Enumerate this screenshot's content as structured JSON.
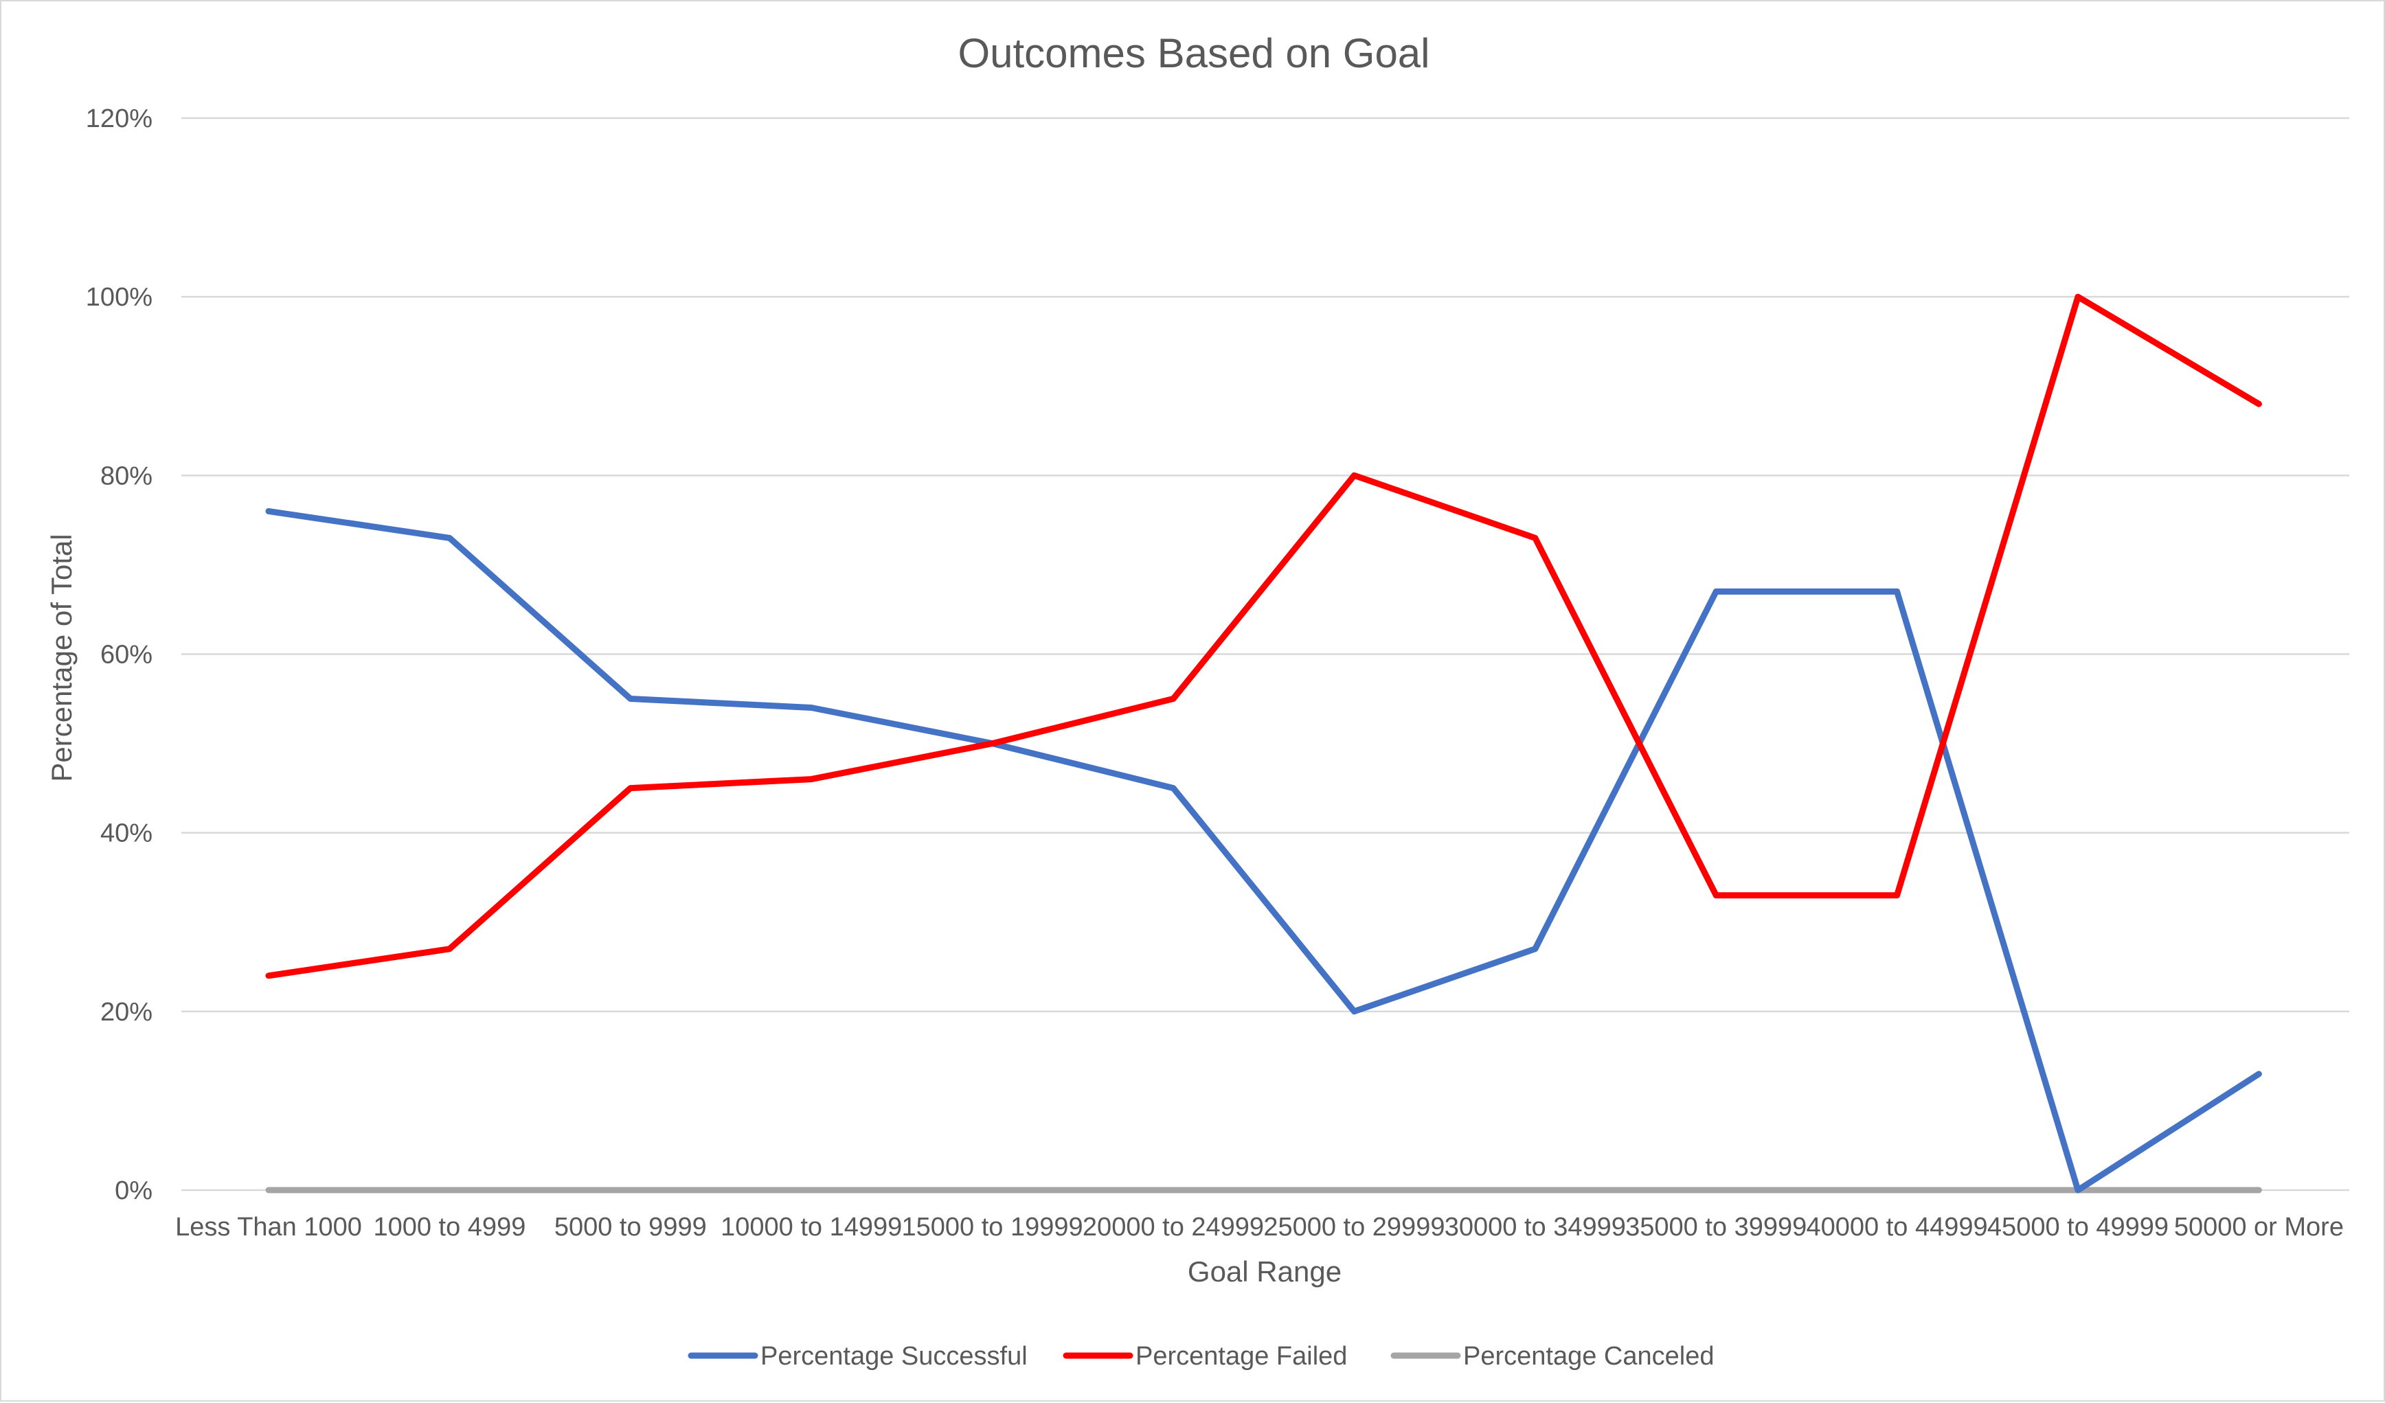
{
  "chart_data": {
    "type": "line",
    "title": "Outcomes Based on Goal",
    "xlabel": "Goal Range",
    "ylabel": "Percentage of Total",
    "categories": [
      "Less Than 1000",
      "1000 to 4999",
      "5000 to 9999",
      "10000 to 14999",
      "15000 to 19999",
      "20000 to 24999",
      "25000 to 29999",
      "30000 to 34999",
      "35000 to 39999",
      "40000 to 44999",
      "45000 to 49999",
      "50000 or More"
    ],
    "ylim": [
      0,
      1.2
    ],
    "yticks": [
      0,
      0.2,
      0.4,
      0.6,
      0.8,
      1.0,
      1.2
    ],
    "ytick_labels": [
      "0%",
      "20%",
      "40%",
      "60%",
      "80%",
      "100%",
      "120%"
    ],
    "grid": true,
    "legend_position": "bottom",
    "series": [
      {
        "name": "Percentage Successful",
        "color": "#4472C4",
        "values": [
          0.76,
          0.73,
          0.55,
          0.54,
          0.5,
          0.45,
          0.2,
          0.27,
          0.67,
          0.67,
          0.0,
          0.13
        ]
      },
      {
        "name": "Percentage Failed",
        "color": "#FF0000",
        "values": [
          0.24,
          0.27,
          0.45,
          0.46,
          0.5,
          0.55,
          0.8,
          0.73,
          0.33,
          0.33,
          1.0,
          0.88
        ]
      },
      {
        "name": "Percentage Canceled",
        "color": "#A5A5A5",
        "values": [
          0,
          0,
          0,
          0,
          0,
          0,
          0,
          0,
          0,
          0,
          0,
          0
        ]
      }
    ]
  }
}
